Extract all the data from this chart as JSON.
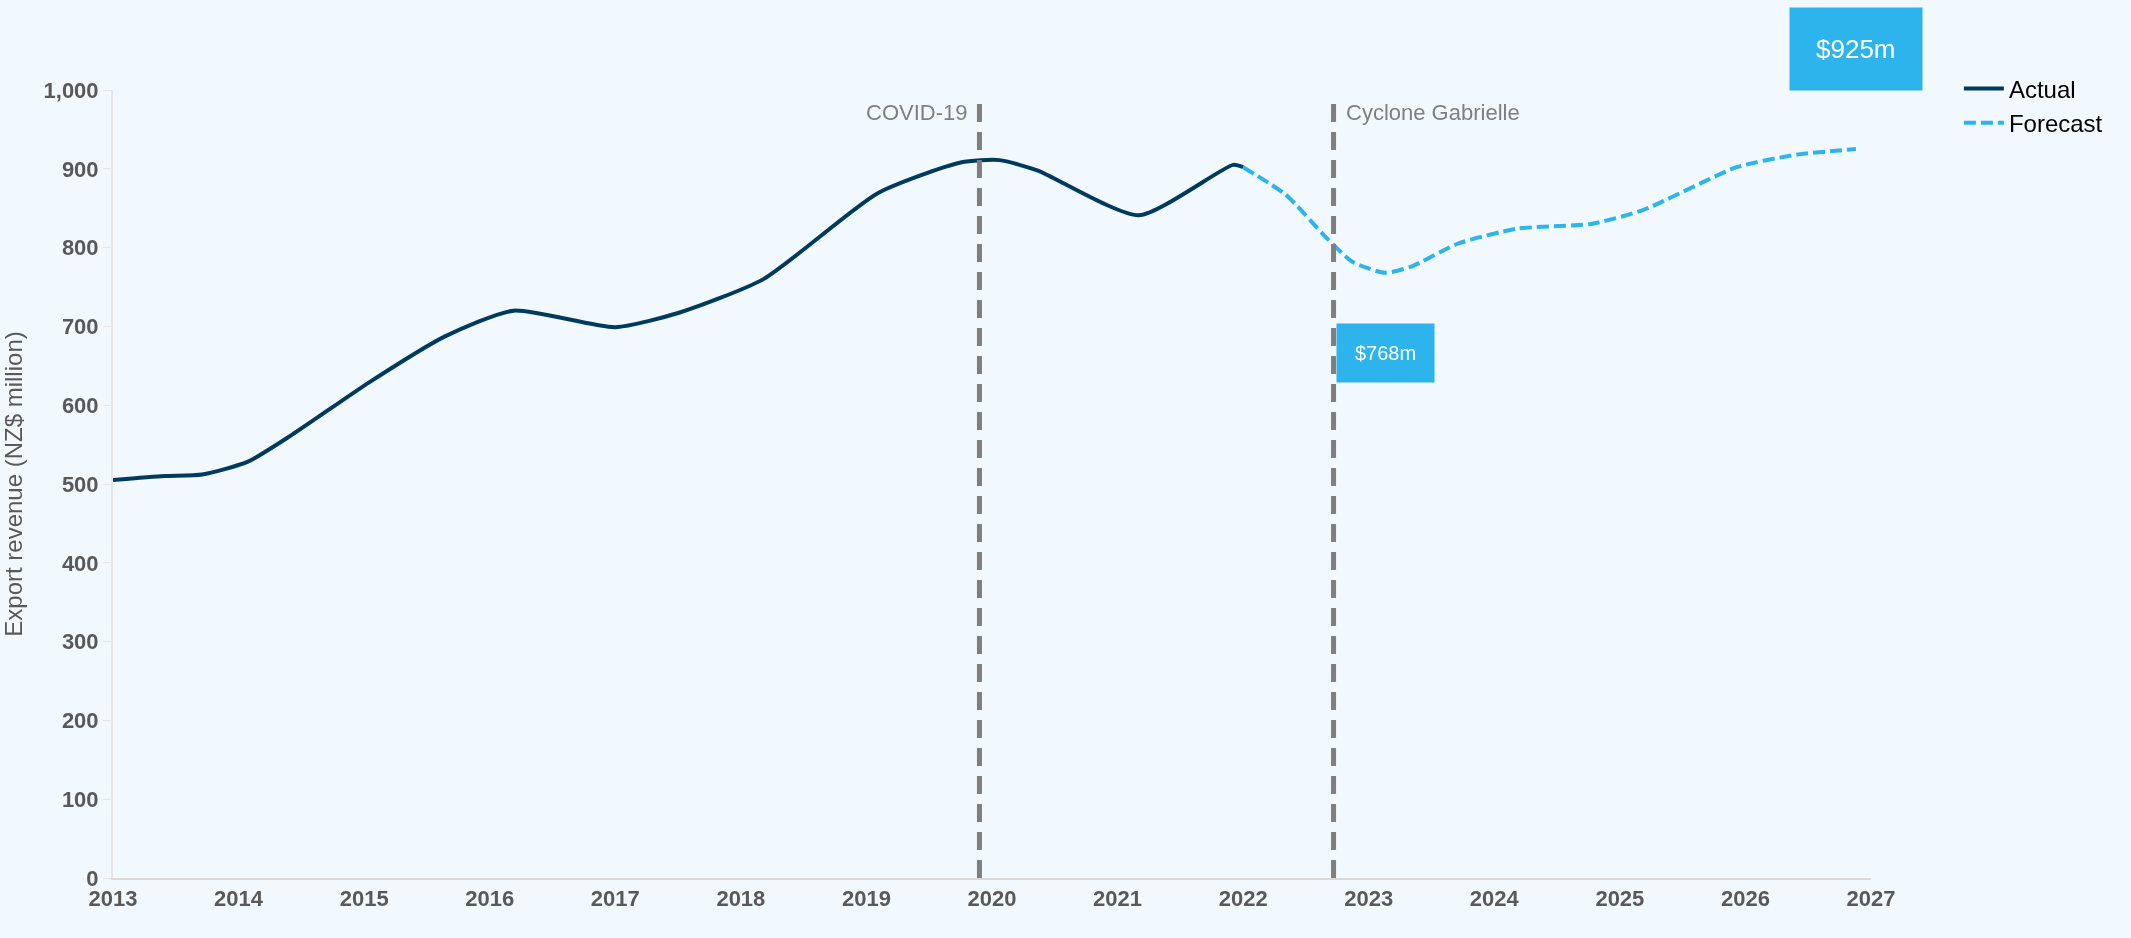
{
  "chart_data": {
    "type": "line",
    "ylabel": "Export revenue (NZ$ million)",
    "xlim": [
      2013,
      2027
    ],
    "xticks": [
      2013,
      2014,
      2015,
      2016,
      2017,
      2018,
      2019,
      2020,
      2021,
      2022,
      2023,
      2024,
      2025,
      2026,
      2027
    ],
    "ylim": [
      0,
      1000
    ],
    "yticks": [
      0,
      100,
      200,
      300,
      400,
      500,
      600,
      700,
      800,
      900,
      {
        "value": 1000,
        "label": "1,000"
      }
    ],
    "grid": false,
    "legend": "top right",
    "marker": "none",
    "series": [
      {
        "name": "Actual",
        "color": "#003a5d",
        "line_style": "solid",
        "x": [
          2013,
          2013.41,
          2013.71,
          2014.07,
          2014.43,
          2015.04,
          2015.64,
          2016.19,
          2017.0,
          2017.52,
          2018.18,
          2019.09,
          2019.75,
          2020.06,
          2020.36,
          2021.17,
          2021.92,
          2022.0
        ],
        "values": [
          505,
          510,
          512,
          528,
          563,
          629,
          687,
          720,
          699,
          718,
          760,
          869,
          908,
          911,
          898,
          841,
          905,
          902
        ]
      },
      {
        "name": "Forecast",
        "color": "#2db4ec",
        "line_style": "dashed",
        "x": [
          2022.0,
          2022.34,
          2022.66,
          2022.87,
          2023.13,
          2023.34,
          2023.71,
          2024.18,
          2024.77,
          2025.19,
          2025.93,
          2026.41,
          2026.88
        ],
        "values": [
          902,
          867,
          813,
          782,
          768,
          776,
          805,
          824,
          830,
          848,
          902,
          918,
          925
        ]
      }
    ],
    "ref_lines": [
      {
        "axis": "x",
        "value": 2019.9,
        "label": "COVID-19",
        "color": "#7f7f7f",
        "line_style": "dashed"
      },
      {
        "axis": "x",
        "value": 2022.72,
        "label": "Cyclone Gabrielle",
        "color": "#7f7f7f",
        "line_style": "dashed"
      }
    ],
    "annotations": [
      "$768m",
      "$925m"
    ]
  }
}
